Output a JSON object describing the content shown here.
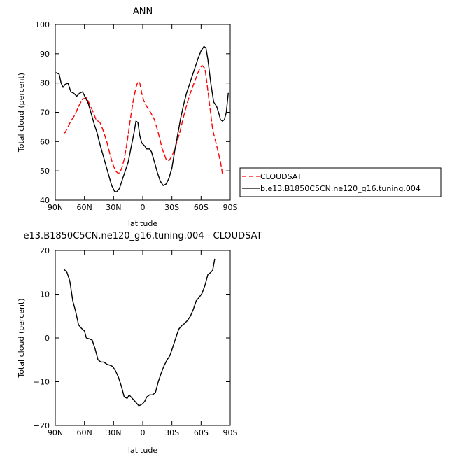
{
  "chart_data": [
    {
      "type": "line",
      "title": "ANN",
      "xlabel": "latitude",
      "ylabel": "Total cloud (percent)",
      "xlim": [
        90,
        -90
      ],
      "ylim": [
        40,
        100
      ],
      "xticks": [
        90,
        60,
        30,
        0,
        -30,
        -60,
        -90
      ],
      "xtick_labels": [
        "90N",
        "60N",
        "30N",
        "0",
        "30S",
        "60S",
        "90S"
      ],
      "yticks": [
        40,
        50,
        60,
        70,
        80,
        90,
        100
      ],
      "ytick_labels": [
        "40",
        "50",
        "60",
        "70",
        "80",
        "90",
        "100"
      ],
      "grid": false,
      "legend_position": "outside-right",
      "series": [
        {
          "name": "CLOUDSAT",
          "color": "#ff0000",
          "dash": "dashed",
          "points": [
            [
              81,
              63
            ],
            [
              80,
              63
            ],
            [
              77,
              65
            ],
            [
              74,
              67
            ],
            [
              70,
              69
            ],
            [
              66,
              72
            ],
            [
              62,
              74.5
            ],
            [
              58,
              75
            ],
            [
              55,
              73
            ],
            [
              51,
              70
            ],
            [
              48,
              67.5
            ],
            [
              44,
              66.5
            ],
            [
              41,
              64
            ],
            [
              37,
              60
            ],
            [
              34,
              56
            ],
            [
              31,
              52.5
            ],
            [
              28,
              50
            ],
            [
              25,
              49
            ],
            [
              22,
              50.5
            ],
            [
              19,
              54
            ],
            [
              16,
              60
            ],
            [
              13,
              67
            ],
            [
              10,
              73.5
            ],
            [
              7,
              78.5
            ],
            [
              5,
              80.5
            ],
            [
              3,
              80
            ],
            [
              1,
              76.5
            ],
            [
              -1,
              74
            ],
            [
              -4,
              72
            ],
            [
              -8,
              70
            ],
            [
              -12,
              67.5
            ],
            [
              -16,
              63
            ],
            [
              -20,
              57.5
            ],
            [
              -24,
              54
            ],
            [
              -27,
              53.5
            ],
            [
              -30,
              55
            ],
            [
              -34,
              58.5
            ],
            [
              -38,
              63
            ],
            [
              -42,
              68.5
            ],
            [
              -46,
              73.5
            ],
            [
              -50,
              77.5
            ],
            [
              -54,
              81
            ],
            [
              -58,
              84.5
            ],
            [
              -61,
              86
            ],
            [
              -64,
              85
            ],
            [
              -66,
              80
            ],
            [
              -69,
              72
            ],
            [
              -72,
              64
            ],
            [
              -75,
              60
            ],
            [
              -78,
              56
            ],
            [
              -80,
              53
            ],
            [
              -82,
              49
            ]
          ]
        },
        {
          "name": "b.e13.B1850C5CN.ne120_g16.tuning.004",
          "color": "#000000",
          "dash": "solid",
          "points": [
            [
              89,
              83.5
            ],
            [
              86,
              83
            ],
            [
              84,
              80
            ],
            [
              82,
              78.5
            ],
            [
              80,
              79.5
            ],
            [
              77,
              80
            ],
            [
              74,
              77
            ],
            [
              71,
              76.5
            ],
            [
              68,
              75.5
            ],
            [
              65,
              76.5
            ],
            [
              62,
              77
            ],
            [
              59,
              75
            ],
            [
              56,
              73
            ],
            [
              53,
              69.5
            ],
            [
              50,
              66
            ],
            [
              47,
              63
            ],
            [
              44,
              59
            ],
            [
              41,
              55.5
            ],
            [
              38,
              52
            ],
            [
              35,
              48.5
            ],
            [
              32,
              45
            ],
            [
              29,
              43
            ],
            [
              27,
              42.8
            ],
            [
              24,
              44
            ],
            [
              21,
              47
            ],
            [
              18,
              50
            ],
            [
              15,
              53
            ],
            [
              12,
              58
            ],
            [
              9,
              63
            ],
            [
              7,
              67
            ],
            [
              5,
              66.5
            ],
            [
              3,
              62
            ],
            [
              1,
              59.5
            ],
            [
              -2,
              58.5
            ],
            [
              -4,
              57.5
            ],
            [
              -7,
              57.5
            ],
            [
              -9,
              56.5
            ],
            [
              -12,
              53
            ],
            [
              -15,
              49.5
            ],
            [
              -18,
              46.5
            ],
            [
              -21,
              45
            ],
            [
              -24,
              45.5
            ],
            [
              -27,
              47.5
            ],
            [
              -30,
              51
            ],
            [
              -33,
              57
            ],
            [
              -36,
              62.5
            ],
            [
              -39,
              68
            ],
            [
              -42,
              72.5
            ],
            [
              -45,
              76.5
            ],
            [
              -48,
              79.5
            ],
            [
              -51,
              82.5
            ],
            [
              -54,
              85.5
            ],
            [
              -57,
              88.5
            ],
            [
              -60,
              91
            ],
            [
              -63,
              92.5
            ],
            [
              -65,
              92
            ],
            [
              -67,
              88
            ],
            [
              -70,
              80
            ],
            [
              -73,
              73.5
            ],
            [
              -76,
              72
            ],
            [
              -78,
              70
            ],
            [
              -80,
              67.5
            ],
            [
              -82,
              67
            ],
            [
              -84,
              67.5
            ],
            [
              -86,
              70
            ],
            [
              -88,
              76.5
            ]
          ]
        }
      ]
    },
    {
      "type": "line",
      "title": "e13.B1850C5CN.ne120_g16.tuning.004 - CLOUDSAT",
      "xlabel": "latitude",
      "ylabel": "Total cloud (percent)",
      "xlim": [
        90,
        -90
      ],
      "ylim": [
        -20,
        20
      ],
      "xticks": [
        90,
        60,
        30,
        0,
        -30,
        -60,
        -90
      ],
      "xtick_labels": [
        "90N",
        "60N",
        "30N",
        "0",
        "30S",
        "60S",
        "90S"
      ],
      "yticks": [
        -20,
        -10,
        0,
        10,
        20
      ],
      "ytick_labels": [
        "−20",
        "−10",
        "0",
        "10",
        "20"
      ],
      "grid": false,
      "series": [
        {
          "color": "#000000",
          "dash": "solid",
          "points": [
            [
              81,
              15.7
            ],
            [
              78,
              15
            ],
            [
              75,
              13
            ],
            [
              72,
              8.5
            ],
            [
              69,
              6
            ],
            [
              66,
              3
            ],
            [
              63,
              2.2
            ],
            [
              60,
              1.6
            ],
            [
              58,
              0
            ],
            [
              55,
              -0.2
            ],
            [
              52,
              -0.5
            ],
            [
              49,
              -2.5
            ],
            [
              46,
              -5
            ],
            [
              43,
              -5.5
            ],
            [
              40,
              -5.5
            ],
            [
              37,
              -6
            ],
            [
              34,
              -6.2
            ],
            [
              31,
              -6.5
            ],
            [
              28,
              -7.5
            ],
            [
              25,
              -9
            ],
            [
              22,
              -11
            ],
            [
              19,
              -13.5
            ],
            [
              16,
              -13.8
            ],
            [
              14,
              -13
            ],
            [
              12,
              -13.5
            ],
            [
              10,
              -14
            ],
            [
              8,
              -14.5
            ],
            [
              6,
              -15
            ],
            [
              4,
              -15.5
            ],
            [
              2,
              -15.3
            ],
            [
              0,
              -15
            ],
            [
              -2,
              -14.5
            ],
            [
              -4,
              -13.5
            ],
            [
              -7,
              -13
            ],
            [
              -10,
              -13
            ],
            [
              -13,
              -12.5
            ],
            [
              -16,
              -10
            ],
            [
              -19,
              -8
            ],
            [
              -22,
              -6.3
            ],
            [
              -25,
              -5
            ],
            [
              -28,
              -4
            ],
            [
              -31,
              -2
            ],
            [
              -34,
              0
            ],
            [
              -37,
              2
            ],
            [
              -40,
              2.8
            ],
            [
              -43,
              3.3
            ],
            [
              -46,
              4
            ],
            [
              -49,
              5
            ],
            [
              -52,
              6.5
            ],
            [
              -55,
              8.5
            ],
            [
              -58,
              9.3
            ],
            [
              -61,
              10.2
            ],
            [
              -64,
              12
            ],
            [
              -67,
              14.5
            ],
            [
              -70,
              15
            ],
            [
              -72,
              15.5
            ],
            [
              -74,
              18
            ]
          ]
        }
      ]
    }
  ]
}
